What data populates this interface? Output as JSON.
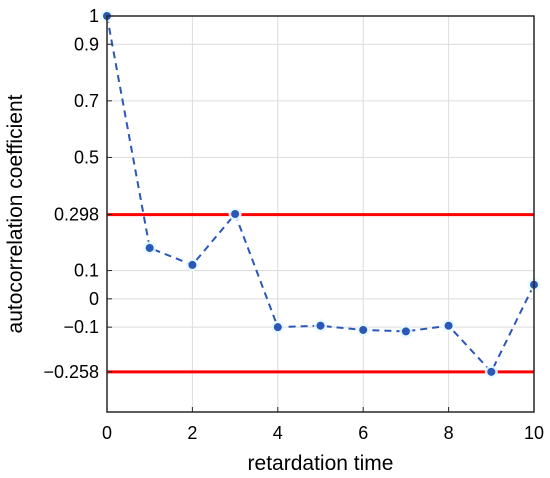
{
  "chart_data": {
    "type": "line",
    "title": "",
    "xlabel": "retardation time",
    "ylabel": "autocorrelation coefficient",
    "xlim": [
      0,
      10
    ],
    "ylim": [
      -0.4,
      1
    ],
    "grid": true,
    "x_ticks": [
      0,
      2,
      4,
      6,
      8,
      10
    ],
    "x_tick_labels": [
      "0",
      "2",
      "4",
      "6",
      "8",
      "10"
    ],
    "y_ticks": [
      1,
      0.9,
      0.7,
      0.5,
      0.298,
      0.1,
      0,
      -0.1,
      -0.258
    ],
    "y_tick_labels": [
      "1",
      "0.9",
      "0.7",
      "0.5",
      "0.298",
      "0.1",
      "0",
      "−0.1",
      "−0.258"
    ],
    "series": [
      {
        "style": "dashed-with-markers",
        "color": "#2b57b8",
        "x": [
          0,
          1,
          2,
          3,
          4,
          5,
          6,
          7,
          8,
          9,
          10
        ],
        "y": [
          1.0,
          0.18,
          0.12,
          0.3,
          -0.1,
          -0.095,
          -0.11,
          -0.115,
          -0.095,
          -0.258,
          0.05
        ]
      }
    ],
    "reference_lines": [
      {
        "y": 0.298,
        "color": "#ff0000"
      },
      {
        "y": -0.258,
        "color": "#ff0000"
      }
    ]
  }
}
